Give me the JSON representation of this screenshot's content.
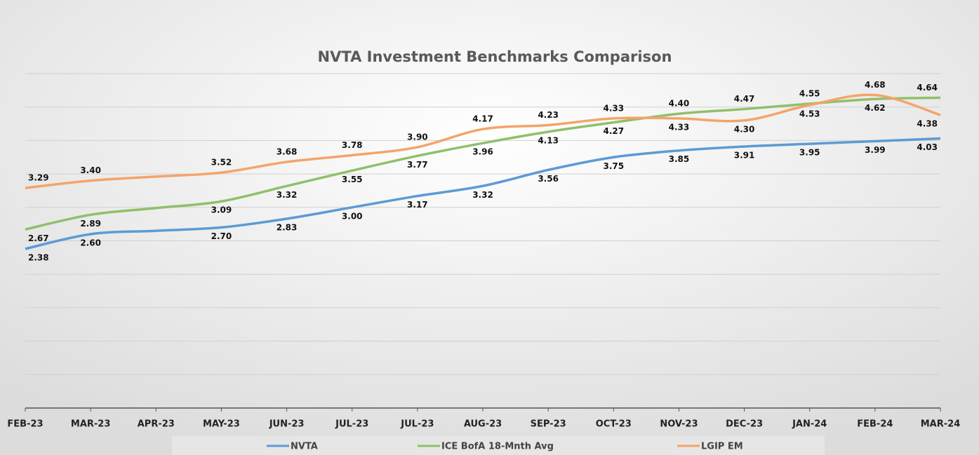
{
  "chart_data": {
    "type": "line",
    "title": "NVTA Investment Benchmarks Comparison",
    "categories": [
      "FEB-23",
      "MAR-23",
      "APR-23",
      "MAY-23",
      "JUN-23",
      "JUL-23",
      "JUL-23",
      "AUG-23",
      "SEP-23",
      "OCT-23",
      "NOV-23",
      "DEC-23",
      "JAN-24",
      "FEB-24",
      "MAR-24"
    ],
    "series": [
      {
        "name": "NVTA",
        "color": "#5b9bd5",
        "values": [
          2.38,
          2.6,
          2.65,
          2.7,
          2.83,
          3.0,
          3.17,
          3.32,
          3.56,
          3.75,
          3.85,
          3.91,
          3.95,
          3.99,
          4.03
        ],
        "value_labels": [
          "2.38",
          "2.60",
          null,
          "2.70",
          "2.83",
          "3.00",
          "3.17",
          "3.32",
          "3.56",
          "3.75",
          "3.85",
          "3.91",
          "3.95",
          "3.99",
          "4.03"
        ]
      },
      {
        "name": "ICE BofA 18-Mnth Avg",
        "color": "#8fc06a",
        "values": [
          2.67,
          2.89,
          2.99,
          3.09,
          3.32,
          3.55,
          3.77,
          3.96,
          4.13,
          4.27,
          4.4,
          4.47,
          4.55,
          4.62,
          4.64
        ],
        "value_labels": [
          "2.67",
          "2.89",
          null,
          "3.09",
          "3.32",
          "3.55",
          "3.77",
          "3.96",
          "4.13",
          "4.27",
          "4.40",
          "4.47",
          "4.55",
          "4.62",
          "4.64"
        ]
      },
      {
        "name": "LGIP EM",
        "color": "#f4a46a",
        "values": [
          3.29,
          3.4,
          3.46,
          3.52,
          3.68,
          3.78,
          3.9,
          4.17,
          4.23,
          4.33,
          4.33,
          4.3,
          4.53,
          4.68,
          4.38
        ],
        "value_labels": [
          "3.29",
          "3.40",
          null,
          "3.52",
          "3.68",
          "3.78",
          "3.90",
          "4.17",
          "4.23",
          "4.33",
          "4.33",
          "4.30",
          "4.53",
          "4.68",
          "4.38"
        ]
      }
    ],
    "ylim": [
      0,
      5
    ],
    "yticks": [
      0,
      0.5,
      1,
      1.5,
      2,
      2.5,
      3,
      3.5,
      4,
      4.5,
      5
    ],
    "grid": true
  }
}
